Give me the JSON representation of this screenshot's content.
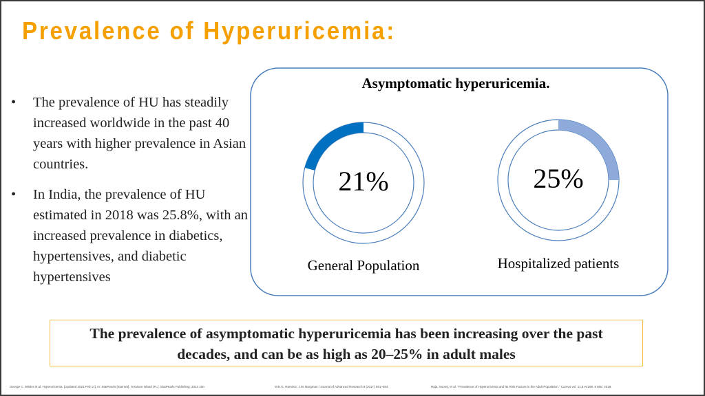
{
  "title": "Prevalence of Hyperuricemia:",
  "bullets": [
    "The prevalence of HU has steadily increased worldwide in the past 40 years with higher prevalence in Asian countries.",
    "In India, the prevalence of HU estimated in 2018 was 25.8%, with an increased prevalence in diabetics, hypertensives, and diabetic hypertensives"
  ],
  "panel": {
    "heading": "Asymptomatic hyperuricemia.",
    "rings": [
      {
        "value": 21,
        "label": "21%",
        "caption": "General Population",
        "color": "#0070c0"
      },
      {
        "value": 25,
        "label": "25%",
        "caption": "Hospitalized patients",
        "color": "#8eaadb"
      }
    ]
  },
  "callout": [
    "The prevalence of asymptomatic hyperuricemia has been increasing over the past",
    "decades, and can be as high as 20–25% in adult males"
  ],
  "references": [
    "George C. Mistler et al. Hyperuricemia. [Updated 2023 Feb 11]. In: StatPearls [Internet]. Treasure Island (FL): StatPearls Publishing; 2023 Jan-",
    "M.E.G. Ramirez, J.M. Bargman / Journal of Advanced Research 8 (2017) 551–554",
    "Raja, Soorej, et al. \"Prevalence of Hyperuricemia and Its Risk Factors in the Adult Population.\" Cureus vol. 11,5 e4198. 6 Mar. 2019."
  ]
}
